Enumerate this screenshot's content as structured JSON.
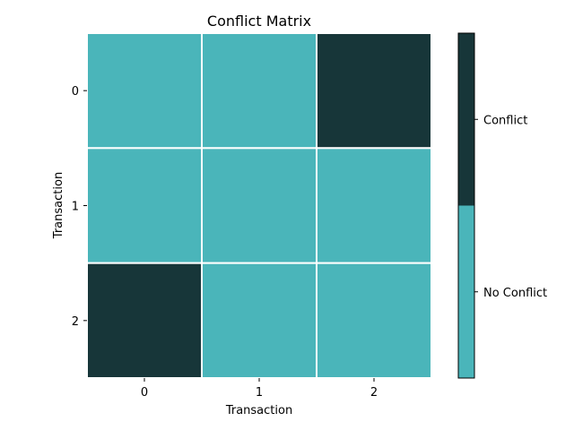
{
  "chart_data": {
    "type": "heatmap",
    "title": "Conflict Matrix",
    "xlabel": "Transaction",
    "ylabel": "Transaction",
    "x_categories": [
      "0",
      "1",
      "2"
    ],
    "y_categories": [
      "0",
      "1",
      "2"
    ],
    "values": [
      [
        0,
        0,
        1
      ],
      [
        0,
        0,
        0
      ],
      [
        1,
        0,
        0
      ]
    ],
    "colorbar": {
      "labels": [
        "No Conflict",
        "Conflict"
      ],
      "colors": [
        "#4ab5ba",
        "#173639"
      ]
    },
    "grid": false
  }
}
